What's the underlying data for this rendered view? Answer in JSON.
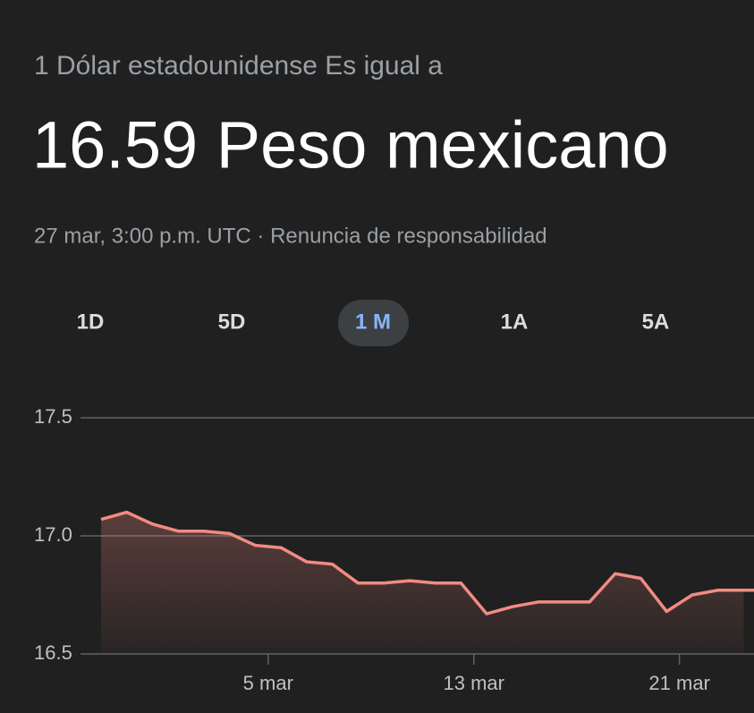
{
  "header": {
    "subtitle": "1 Dólar estadounidense Es igual a",
    "value_text": "16.59 Peso mexicano",
    "timestamp": "27 mar, 3:00 p.m. UTC · Renuncia de responsabilidad"
  },
  "tabs": [
    "1D",
    "5D",
    "1 M",
    "1A",
    "5A"
  ],
  "chart_data": {
    "type": "line",
    "color": "#f28b82",
    "x": [
      0,
      1,
      2,
      3,
      4,
      5,
      6,
      7,
      8,
      9,
      10,
      11,
      12,
      13,
      14,
      15,
      16,
      17,
      18,
      19,
      20,
      21,
      22,
      23,
      24,
      25
    ],
    "values": [
      17.07,
      17.1,
      17.05,
      17.02,
      17.02,
      17.01,
      16.96,
      16.95,
      16.89,
      16.88,
      16.8,
      16.8,
      16.81,
      16.8,
      16.8,
      16.67,
      16.7,
      16.72,
      16.72,
      16.72,
      16.84,
      16.82,
      16.68,
      16.75,
      16.77,
      16.77
    ],
    "xlim": [
      0,
      25.4
    ],
    "xticks": [
      {
        "value": 6.5,
        "label": "5 mar"
      },
      {
        "value": 14.5,
        "label": "13 mar"
      },
      {
        "value": 22.5,
        "label": "21 mar"
      }
    ],
    "ylim": [
      16.5,
      17.5
    ],
    "yticks": [
      16.5,
      {
        "value": 17,
        "label": "17.0"
      },
      17.5
    ],
    "grid": true
  }
}
